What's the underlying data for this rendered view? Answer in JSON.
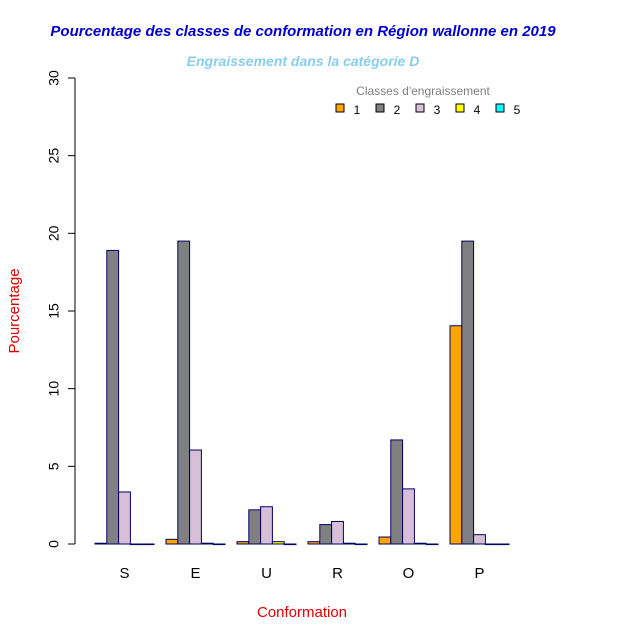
{
  "chart_data": {
    "type": "bar",
    "title": "Pourcentage des classes de conformation en Région wallonne en 2019",
    "subtitle": "Engraissement dans la catégorie D",
    "xlabel": "Conformation",
    "ylabel": "Pourcentage",
    "ylim": [
      0,
      30
    ],
    "yticks": [
      "0",
      "5",
      "10",
      "15",
      "20",
      "25",
      "30"
    ],
    "categories": [
      "S",
      "E",
      "U",
      "R",
      "O",
      "P"
    ],
    "legend_title": "Classes d'engraissement",
    "legend_position": "top-right",
    "series": [
      {
        "name": "1",
        "color": "#FFA500",
        "values": [
          0.05,
          0.3,
          0.15,
          0.15,
          0.45,
          14.05
        ]
      },
      {
        "name": "2",
        "color": "#808080",
        "values": [
          18.9,
          19.5,
          2.2,
          1.25,
          6.7,
          19.5
        ]
      },
      {
        "name": "3",
        "color": "#D8BFD8",
        "values": [
          3.35,
          6.05,
          2.4,
          1.45,
          3.55,
          0.6
        ]
      },
      {
        "name": "4",
        "color": "#FFFF00",
        "values": [
          0,
          0.05,
          0.15,
          0.05,
          0.05,
          0
        ]
      },
      {
        "name": "5",
        "color": "#00FFFF",
        "values": [
          0,
          0,
          0,
          0,
          0,
          0
        ]
      }
    ]
  }
}
